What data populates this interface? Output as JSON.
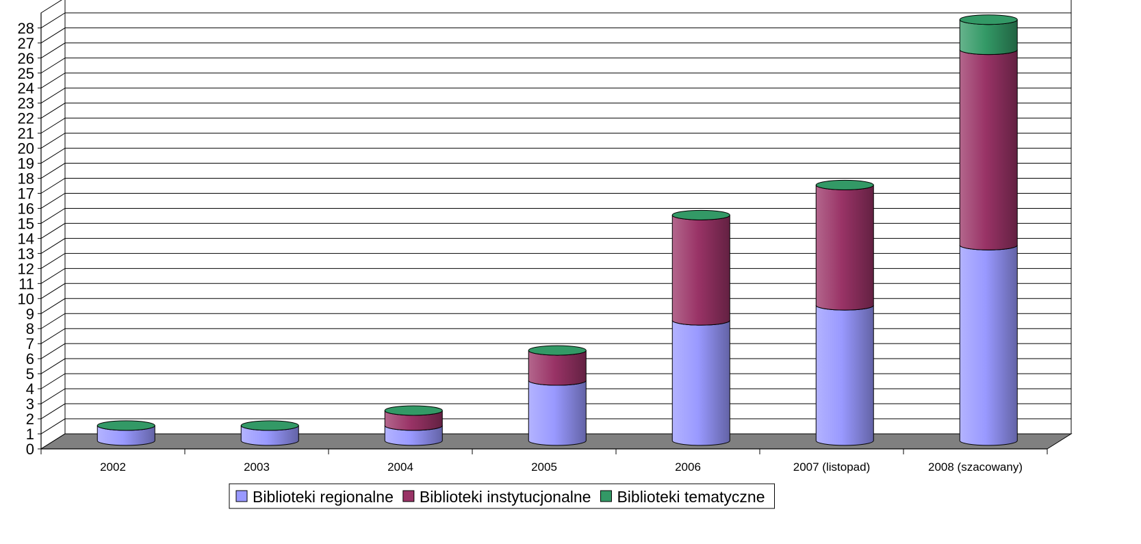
{
  "chart_data": {
    "type": "bar",
    "stacked": true,
    "style": "3d-cylinder",
    "title": "",
    "xlabel": "",
    "ylabel": "",
    "categories": [
      "2002",
      "2003",
      "2004",
      "2005",
      "2006",
      "2007 (listopad)",
      "2008 (szacowany)"
    ],
    "series": [
      {
        "name": "Biblioteki regionalne",
        "values": [
          1,
          1,
          1,
          4,
          8,
          9,
          13
        ],
        "color": "#9999ff"
      },
      {
        "name": "Biblioteki instytucjonalne",
        "values": [
          0,
          0,
          1,
          2,
          7,
          8,
          13
        ],
        "color": "#993366"
      },
      {
        "name": "Biblioteki tematyczne",
        "values": [
          0,
          0,
          0,
          0,
          0,
          0,
          2
        ],
        "color": "#339966"
      }
    ],
    "yticks": [
      "0",
      "1",
      "2",
      "3",
      "4",
      "5",
      "6",
      "7",
      "8",
      "9",
      "10",
      "11",
      "12",
      "13",
      "14",
      "15",
      "16",
      "17",
      "18",
      "19",
      "20",
      "21",
      "22",
      "23",
      "24",
      "25",
      "26",
      "27",
      "28"
    ],
    "ylim": [
      0,
      28
    ],
    "grid": true,
    "legend_position": "bottom",
    "floor_color": "#808080"
  }
}
